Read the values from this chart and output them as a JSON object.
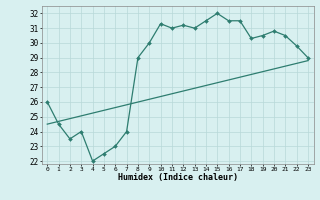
{
  "line1_x": [
    0,
    1,
    2,
    3,
    4,
    5,
    6,
    7,
    8,
    9,
    10,
    11,
    12,
    13,
    14,
    15,
    16,
    17,
    18,
    19,
    20,
    21,
    22,
    23
  ],
  "line1_y": [
    26.0,
    24.5,
    23.5,
    24.0,
    22.0,
    22.5,
    23.0,
    24.0,
    29.0,
    30.0,
    31.3,
    31.0,
    31.2,
    31.0,
    31.5,
    32.0,
    31.5,
    31.5,
    30.3,
    30.5,
    30.8,
    30.5,
    29.8,
    29.0
  ],
  "line2_x": [
    0,
    23
  ],
  "line2_y": [
    24.5,
    28.8
  ],
  "line_color": "#2e7d70",
  "bg_color": "#d8f0f0",
  "grid_color": "#b8d8d8",
  "xlabel": "Humidex (Indice chaleur)",
  "ylim": [
    21.8,
    32.5
  ],
  "xlim": [
    -0.5,
    23.5
  ],
  "yticks": [
    22,
    23,
    24,
    25,
    26,
    27,
    28,
    29,
    30,
    31,
    32
  ],
  "xticks": [
    0,
    1,
    2,
    3,
    4,
    5,
    6,
    7,
    8,
    9,
    10,
    11,
    12,
    13,
    14,
    15,
    16,
    17,
    18,
    19,
    20,
    21,
    22,
    23
  ],
  "marker": "D",
  "markersize": 2.0,
  "linewidth": 0.9
}
